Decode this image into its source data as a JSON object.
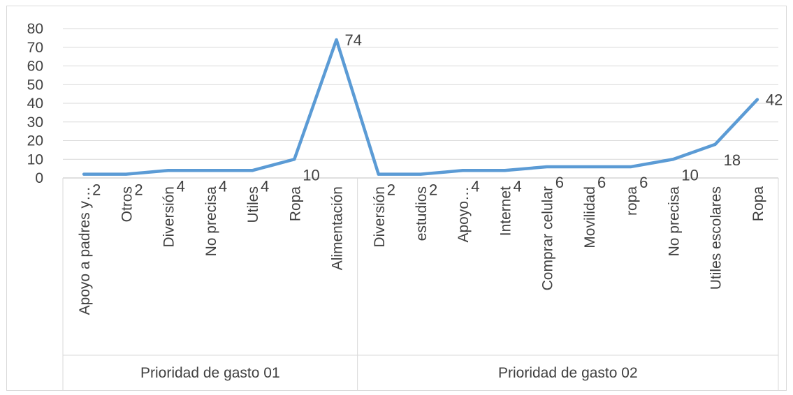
{
  "chart_data": {
    "type": "line",
    "groups": [
      {
        "name": "Prioridad de gasto 01",
        "categories": [
          "Apoyo a padres y…",
          "Otros",
          "Diversión",
          "No precisa",
          "Utiles",
          "Ropa",
          "Alimentación"
        ],
        "values": [
          2,
          2,
          4,
          4,
          4,
          10,
          74
        ]
      },
      {
        "name": "Prioridad de gasto 02",
        "categories": [
          "Diversión",
          "estudios",
          "Apoyo…",
          "Internet",
          "Comprar celular",
          "Movilidad",
          "ropa",
          "No precisa",
          "Utiles escolares",
          "Ropa"
        ],
        "values": [
          2,
          2,
          4,
          4,
          6,
          6,
          6,
          10,
          18,
          42
        ]
      }
    ],
    "ylim": [
      0,
      80
    ],
    "yticks": [
      0,
      10,
      20,
      30,
      40,
      50,
      60,
      70,
      80
    ],
    "grid": true,
    "legend": "none",
    "line_color": "#5b9bd5",
    "title": "",
    "xlabel": "",
    "ylabel": ""
  }
}
